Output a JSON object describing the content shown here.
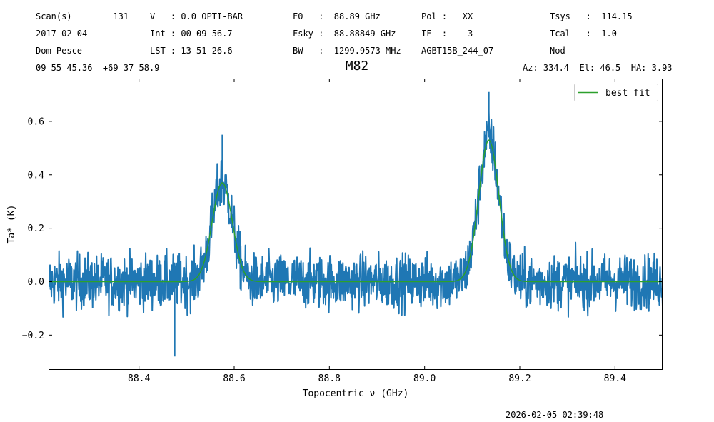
{
  "header": {
    "row1": {
      "c1": "Scan(s)        131",
      "c2": "V   : 0.0 OPTI-BAR",
      "c3": "F0   :  88.89 GHz",
      "c4": "Pol :   XX",
      "c5": "Tsys   :  114.15"
    },
    "row2": {
      "c1": "2017-02-04",
      "c2": "Int : 00 09 56.7",
      "c3": "Fsky :  88.88849 GHz",
      "c4": "IF  :    3",
      "c5": "Tcal   :  1.0"
    },
    "row3": {
      "c1": "Dom Pesce",
      "c2": "LST : 13 51 26.6",
      "c3": "BW   :  1299.9573 MHz",
      "c4": "AGBT15B_244_07",
      "c5": "Nod"
    },
    "row4": {
      "c1": "09 55 45.36  +69 37 58.9",
      "c2": "Az: 334.4  El: 46.5  HA: 3.93"
    }
  },
  "footer": {
    "timestamp": "2026-02-05 02:39:48"
  },
  "colors": {
    "data": "#1f77b4",
    "fit": "#2ca02c"
  },
  "chart_data": {
    "type": "line",
    "title": "M82",
    "xlabel": "Topocentric ν (GHz)",
    "ylabel": "Ta* (K)",
    "xlim": [
      88.21,
      89.5
    ],
    "ylim": [
      -0.33,
      0.76
    ],
    "xticks": [
      88.4,
      88.6,
      88.8,
      89.0,
      89.2,
      89.4
    ],
    "xtick_labels": [
      "88.4",
      "88.6",
      "88.8",
      "89.0",
      "89.2",
      "89.4"
    ],
    "yticks": [
      -0.2,
      0.0,
      0.2,
      0.4,
      0.6
    ],
    "ytick_labels": [
      "−0.2",
      "0.0",
      "0.2",
      "0.4",
      "0.6"
    ],
    "legend": {
      "position": "top-right",
      "entries": [
        "best fit"
      ]
    },
    "series": [
      {
        "role": "data",
        "style": "noisy spectrum",
        "baseline_noise_peak_to_peak": [
          -0.15,
          0.15
        ],
        "features": [
          {
            "center": 88.575,
            "amplitude": 0.37,
            "fwhm": 0.05
          },
          {
            "center": 89.135,
            "amplitude": 0.54,
            "fwhm": 0.05
          }
        ],
        "extremes": [
          {
            "x": 88.575,
            "y": 0.55
          },
          {
            "x": 89.135,
            "y": 0.71
          },
          {
            "x": 88.475,
            "y": -0.28
          }
        ]
      },
      {
        "name": "best fit",
        "role": "fit",
        "components": [
          {
            "center": 88.575,
            "amplitude": 0.37,
            "fwhm": 0.05
          },
          {
            "center": 89.135,
            "amplitude": 0.53,
            "fwhm": 0.05
          }
        ]
      }
    ]
  }
}
